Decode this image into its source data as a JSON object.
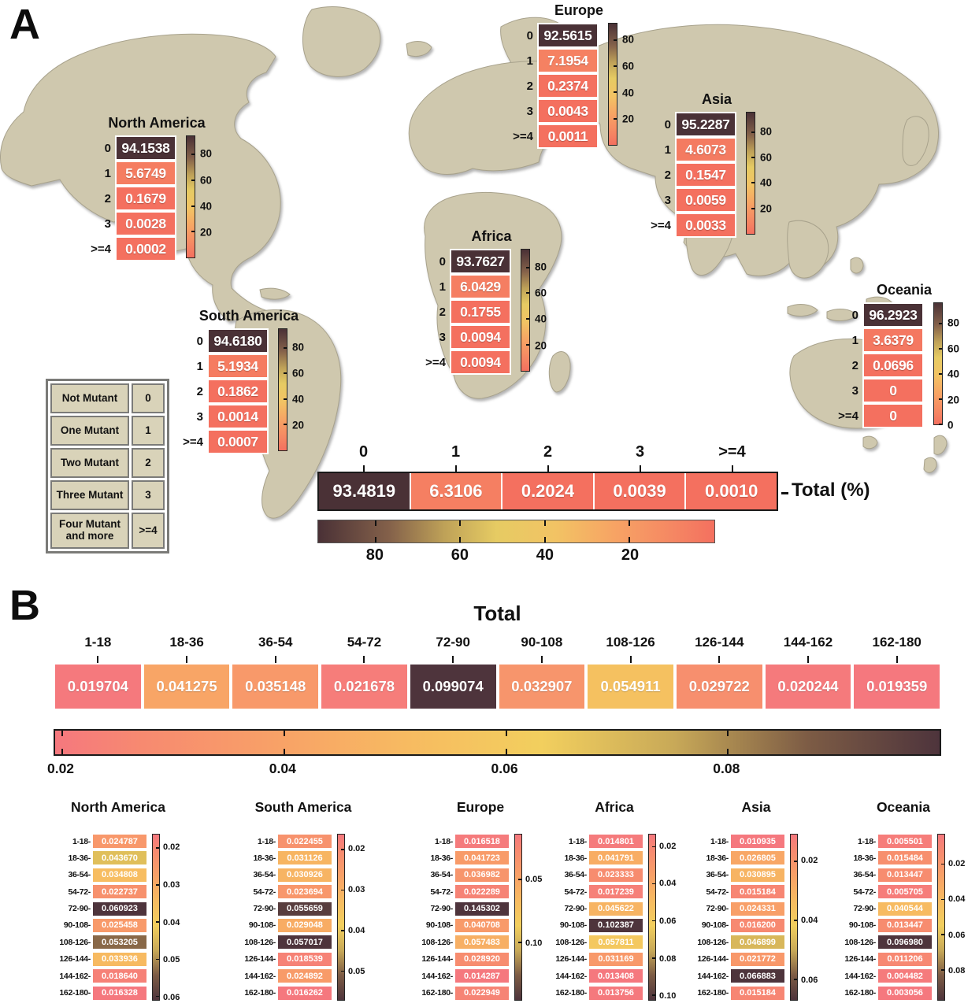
{
  "colors": {
    "background": "#ffffff",
    "map_land": "#cfc8ae",
    "map_outline": "#a8a28c",
    "cell_text": "#ffffff",
    "legend_bg": "#d9d3b9",
    "legend_border": "#7b7b78",
    "colormap_a": [
      [
        0,
        "#f4705f"
      ],
      [
        0.1,
        "#f58663"
      ],
      [
        0.25,
        "#f7a364"
      ],
      [
        0.4,
        "#f2c364"
      ],
      [
        0.55,
        "#e6cb63"
      ],
      [
        0.68,
        "#bfa258"
      ],
      [
        0.82,
        "#84614a"
      ],
      [
        1,
        "#4a3136"
      ]
    ],
    "colormap_b": [
      [
        0,
        "#f5787e"
      ],
      [
        0.1,
        "#f78a70"
      ],
      [
        0.25,
        "#f8a167"
      ],
      [
        0.4,
        "#f7bb61"
      ],
      [
        0.55,
        "#f2cf5e"
      ],
      [
        0.7,
        "#c8a958"
      ],
      [
        0.85,
        "#7d5c45"
      ],
      [
        1,
        "#4e343c"
      ]
    ]
  },
  "chart_data": {
    "type": "heatmap",
    "panelA": {
      "label": "A",
      "unit": "percent",
      "categories": [
        "0",
        "1",
        "2",
        "3",
        ">=4"
      ],
      "category_legend": [
        [
          "Not Mutant",
          "0"
        ],
        [
          "One Mutant",
          "1"
        ],
        [
          "Two Mutant",
          "2"
        ],
        [
          "Three Mutant",
          "3"
        ],
        [
          "Four Mutant and more",
          ">=4"
        ]
      ],
      "regions": [
        {
          "name": "North America",
          "values": [
            "94.1538",
            "5.6749",
            "0.1679",
            "0.0028",
            "0.0002"
          ],
          "ticks": [
            "80",
            "60",
            "40",
            "20"
          ]
        },
        {
          "name": "South America",
          "values": [
            "94.6180",
            "5.1934",
            "0.1862",
            "0.0014",
            "0.0007"
          ],
          "ticks": [
            "80",
            "60",
            "40",
            "20"
          ]
        },
        {
          "name": "Europe",
          "values": [
            "92.5615",
            "7.1954",
            "0.2374",
            "0.0043",
            "0.0011"
          ],
          "ticks": [
            "80",
            "60",
            "40",
            "20"
          ]
        },
        {
          "name": "Africa",
          "values": [
            "93.7627",
            "6.0429",
            "0.1755",
            "0.0094",
            "0.0094"
          ],
          "ticks": [
            "80",
            "60",
            "40",
            "20"
          ]
        },
        {
          "name": "Asia",
          "values": [
            "95.2287",
            "4.6073",
            "0.1547",
            "0.0059",
            "0.0033"
          ],
          "ticks": [
            "80",
            "60",
            "40",
            "20"
          ]
        },
        {
          "name": "Oceania",
          "values": [
            "96.2923",
            "3.6379",
            "0.0696",
            "0",
            "0"
          ],
          "ticks": [
            "80",
            "60",
            "40",
            "20",
            "0"
          ]
        }
      ],
      "total": {
        "label": "Total (%)",
        "values": [
          "93.4819",
          "6.3106",
          "0.2024",
          "0.0039",
          "0.0010"
        ],
        "ticks": [
          "80",
          "60",
          "40",
          "20"
        ]
      }
    },
    "panelB": {
      "label": "B",
      "title": "Total",
      "bins": [
        "1-18",
        "18-36",
        "36-54",
        "54-72",
        "72-90",
        "90-108",
        "108-126",
        "126-144",
        "144-162",
        "162-180"
      ],
      "total": {
        "values": [
          "0.019704",
          "0.041275",
          "0.035148",
          "0.021678",
          "0.099074",
          "0.032907",
          "0.054911",
          "0.029722",
          "0.020244",
          "0.019359"
        ],
        "ticks": [
          "0.02",
          "0.04",
          "0.06",
          "0.08"
        ]
      },
      "regions": [
        {
          "name": "North America",
          "values": [
            "0.024787",
            "0.043670",
            "0.034808",
            "0.022737",
            "0.060923",
            "0.025458",
            "0.053205",
            "0.033936",
            "0.018640",
            "0.016328"
          ],
          "ticks": [
            "0.02",
            "0.03",
            "0.04",
            "0.05",
            "0.06"
          ]
        },
        {
          "name": "South America",
          "values": [
            "0.022455",
            "0.031126",
            "0.030926",
            "0.023694",
            "0.055659",
            "0.029048",
            "0.057017",
            "0.018539",
            "0.024892",
            "0.016262"
          ],
          "ticks": [
            "0.02",
            "0.03",
            "0.04",
            "0.05"
          ]
        },
        {
          "name": "Europe",
          "values": [
            "0.016518",
            "0.041723",
            "0.036982",
            "0.022289",
            "0.145302",
            "0.040708",
            "0.057483",
            "0.028920",
            "0.014287",
            "0.022949"
          ],
          "ticks": [
            "0.05",
            "0.10"
          ]
        },
        {
          "name": "Africa",
          "values": [
            "0.014801",
            "0.041791",
            "0.023333",
            "0.017239",
            "0.045622",
            "0.102387",
            "0.057811",
            "0.031169",
            "0.013408",
            "0.013756"
          ],
          "ticks": [
            "0.02",
            "0.04",
            "0.06",
            "0.08",
            "0.10"
          ]
        },
        {
          "name": "Asia",
          "values": [
            "0.010935",
            "0.026805",
            "0.030895",
            "0.015184",
            "0.024331",
            "0.016200",
            "0.046899",
            "0.021772",
            "0.066883",
            "0.015184"
          ],
          "ticks": [
            "0.02",
            "0.04",
            "0.06"
          ]
        },
        {
          "name": "Oceania",
          "values": [
            "0.005501",
            "0.015484",
            "0.013447",
            "0.005705",
            "0.040544",
            "0.013447",
            "0.096980",
            "0.011206",
            "0.004482",
            "0.003056"
          ],
          "ticks": [
            "0.02",
            "0.04",
            "0.06",
            "0.08"
          ]
        }
      ]
    }
  }
}
